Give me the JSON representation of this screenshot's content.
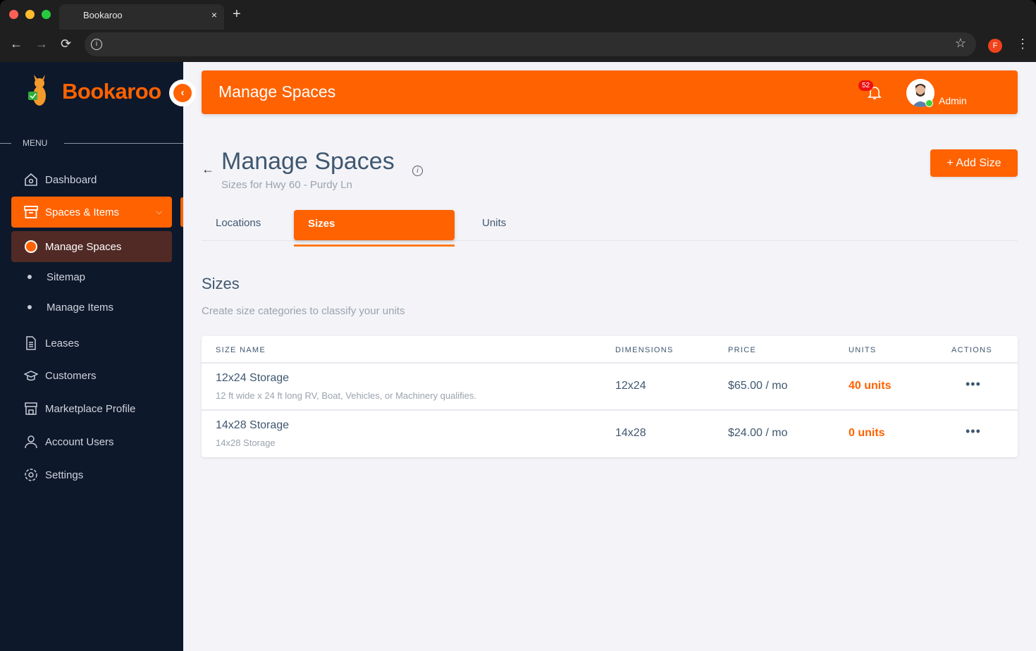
{
  "browser": {
    "tab_title": "Bookaroo",
    "close": "×",
    "new_tab": "+",
    "back": "←",
    "forward": "→",
    "reload": "⟳",
    "info": "i",
    "star": "☆",
    "profile_initial": "F",
    "menu": "⋮"
  },
  "sidebar": {
    "brand": "Bookaroo",
    "menu_label": "MENU",
    "items": [
      {
        "label": "Dashboard",
        "icon": "home-icon"
      },
      {
        "label": "Spaces & Items",
        "icon": "archive-icon",
        "active": true
      },
      {
        "label": "Manage Spaces",
        "sub": true,
        "selected": true
      },
      {
        "label": "Sitemap",
        "sub": true
      },
      {
        "label": "Manage Items",
        "sub": true
      },
      {
        "label": "Leases",
        "icon": "document-icon"
      },
      {
        "label": "Customers",
        "icon": "graduation-cap-icon"
      },
      {
        "label": "Marketplace Profile",
        "icon": "store-icon"
      },
      {
        "label": "Account Users",
        "icon": "user-icon"
      },
      {
        "label": "Settings",
        "icon": "gear-icon"
      }
    ]
  },
  "header": {
    "title": "Manage Spaces",
    "notifications": "52",
    "user": "Admin"
  },
  "page": {
    "back": "←",
    "title": "Manage Spaces",
    "info": "i",
    "subtitle": "Sizes for Hwy 60 - Purdy Ln",
    "add_button": "+ Add Size",
    "tabs": [
      {
        "label": "Locations"
      },
      {
        "label": "Sizes",
        "active": true
      },
      {
        "label": "Units"
      }
    ],
    "section_title": "Sizes",
    "section_desc": "Create size categories to classify your units"
  },
  "table": {
    "columns": [
      "SIZE NAME",
      "DIMENSIONS",
      "PRICE",
      "UNITS",
      "ACTIONS"
    ],
    "rows": [
      {
        "name": "12x24 Storage",
        "desc": "12 ft wide x 24 ft long RV, Boat, Vehicles, or Machinery qualifies.",
        "dimensions": "12x24",
        "price": "$65.00 / mo",
        "units": "40 units",
        "actions": "•••"
      },
      {
        "name": "14x28 Storage",
        "desc": "14x28 Storage",
        "dimensions": "14x28",
        "price": "$24.00 / mo",
        "units": "0 units",
        "actions": "•••"
      }
    ]
  },
  "colors": {
    "accent": "#ff6200",
    "sidebar": "#0d182b",
    "text": "#3f5770"
  }
}
